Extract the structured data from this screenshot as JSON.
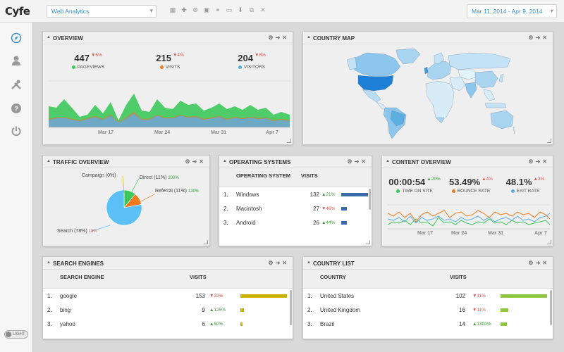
{
  "app": {
    "logo": "Cyfe",
    "dashboard": "Web Analytics",
    "date_range": "Mar 11, 2014 - Apr 9, 2014",
    "toggle": "LIGHT"
  },
  "colors": {
    "accent": "#3a8fd0",
    "green": "#3cc85a",
    "blue": "#5aaee0",
    "orange": "#f07a1e",
    "olive": "#c8b400",
    "lime": "#8ec63f",
    "navy": "#3a6aa8"
  },
  "toolbar_icons": [
    "grid-icon",
    "plus-icon",
    "gear-icon",
    "image-icon",
    "link-icon",
    "monitor-icon",
    "download-icon",
    "copy-icon",
    "close-icon"
  ],
  "sidebar_icons": [
    "compass-icon",
    "user-icon",
    "tools-icon",
    "help-icon",
    "power-icon"
  ],
  "overview": {
    "title": "OVERVIEW",
    "stats": [
      {
        "value": "447",
        "change": "▼6%",
        "label": "PAGEVIEWS",
        "color": "#3cc85a",
        "dir": "down"
      },
      {
        "value": "215",
        "change": "▼4%",
        "label": "VISITS",
        "color": "#f07a1e",
        "dir": "down"
      },
      {
        "value": "204",
        "change": "▼8%",
        "label": "VISITORS",
        "color": "#5aaee0",
        "dir": "down"
      }
    ],
    "x_ticks": [
      "Mar 17",
      "Mar 24",
      "Mar 31",
      "Apr 7"
    ]
  },
  "country_map": {
    "title": "COUNTRY MAP"
  },
  "traffic": {
    "title": "TRAFFIC OVERVIEW",
    "slices": [
      {
        "label": "Campaign (0%)",
        "change": "",
        "value": 0,
        "color": "#c8b400"
      },
      {
        "label": "Direct (11%)",
        "change": "200%",
        "value": 11,
        "color": "#3cc85a"
      },
      {
        "label": "Referral (11%)",
        "change": "130%",
        "value": 11,
        "color": "#f07a1e"
      },
      {
        "label": "Search (78%)",
        "change": "18%",
        "value": 78,
        "color": "#5ac0f5"
      }
    ]
  },
  "os": {
    "title": "OPERATING SYSTEMS",
    "col1": "OPERATING SYSTEM",
    "col2": "VISITS",
    "rows": [
      {
        "idx": "1.",
        "name": "Windows",
        "visits": "132",
        "change": "▲21%",
        "dir": "up",
        "frac": 1.0
      },
      {
        "idx": "2.",
        "name": "Macintosh",
        "visits": "27",
        "change": "▼46%",
        "dir": "down",
        "frac": 0.2
      },
      {
        "idx": "3.",
        "name": "Android",
        "visits": "26",
        "change": "▲44%",
        "dir": "up",
        "frac": 0.2
      }
    ]
  },
  "content": {
    "title": "CONTENT OVERVIEW",
    "stats": [
      {
        "value": "00:00:54",
        "change": "▲20%",
        "label": "TIME ON SITE",
        "color": "#3cc85a",
        "dir": "up"
      },
      {
        "value": "53.49%",
        "change": "▲4%",
        "label": "BOUNCE RATE",
        "color": "#f07a1e",
        "dir": "up"
      },
      {
        "value": "48.1%",
        "change": "▲3%",
        "label": "EXIT RATE",
        "color": "#5aaee0",
        "dir": "up"
      }
    ],
    "x_ticks": [
      "Mar 17",
      "Mar 24",
      "Mar 31",
      "Apr 7"
    ]
  },
  "search": {
    "title": "SEARCH ENGINES",
    "col1": "SEARCH ENGINE",
    "col2": "VISITS",
    "rows": [
      {
        "idx": "1.",
        "name": "google",
        "visits": "153",
        "change": "▼22%",
        "dir": "down",
        "frac": 1.0
      },
      {
        "idx": "2.",
        "name": "bing",
        "visits": "9",
        "change": "▲125%",
        "dir": "up",
        "frac": 0.06
      },
      {
        "idx": "3.",
        "name": "yahoo",
        "visits": "6",
        "change": "▲50%",
        "dir": "up",
        "frac": 0.04
      }
    ]
  },
  "countries": {
    "title": "COUNTRY LIST",
    "col1": "COUNTRY",
    "col2": "VISITS",
    "rows": [
      {
        "idx": "1.",
        "name": "United States",
        "visits": "102",
        "change": "▼11%",
        "dir": "down",
        "frac": 1.0
      },
      {
        "idx": "2.",
        "name": "United Kingdom",
        "visits": "16",
        "change": "▼11%",
        "dir": "down",
        "frac": 0.16
      },
      {
        "idx": "3.",
        "name": "Brazil",
        "visits": "14",
        "change": "▲1300%",
        "dir": "up",
        "frac": 0.14
      }
    ]
  }
}
